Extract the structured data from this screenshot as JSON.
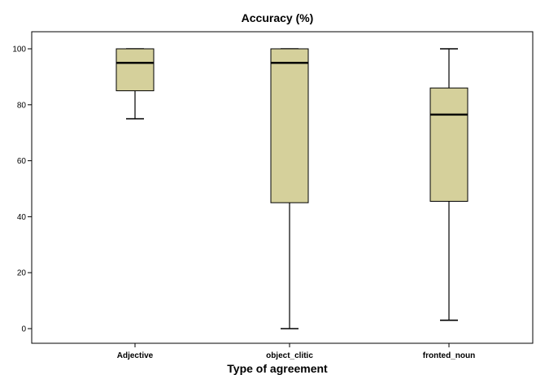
{
  "chart_data": {
    "type": "boxplot",
    "title": "Accuracy (%)",
    "xlabel": "Type of agreement",
    "ylabel": "",
    "ylim": [
      -5,
      105
    ],
    "yticks": [
      0,
      20,
      40,
      60,
      80,
      100
    ],
    "categories": [
      "Adjective",
      "object_clitic",
      "fronted_noun"
    ],
    "boxes": [
      {
        "category": "Adjective",
        "min": 75,
        "q1": 85,
        "median": 95,
        "q3": 100,
        "max": 100
      },
      {
        "category": "object_clitic",
        "min": 0,
        "q1": 45,
        "median": 95,
        "q3": 100,
        "max": 100
      },
      {
        "category": "fronted_noun",
        "min": 3,
        "q1": 45.5,
        "median": 76.5,
        "q3": 86,
        "max": 100
      }
    ],
    "grid": false,
    "legend": "none",
    "colors": {
      "box_fill": "#d5d09b",
      "box_stroke": "#000000",
      "median": "#000000"
    }
  }
}
